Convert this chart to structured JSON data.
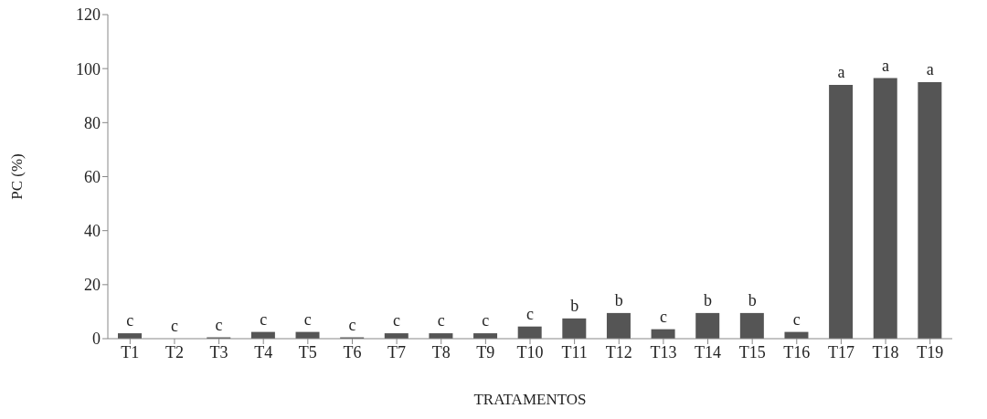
{
  "chart_data": {
    "type": "bar",
    "xlabel": "TRATAMENTOS",
    "ylabel": "PC (%)",
    "categories": [
      "T1",
      "T2",
      "T3",
      "T4",
      "T5",
      "T6",
      "T7",
      "T8",
      "T9",
      "T10",
      "T11",
      "T12",
      "T13",
      "T14",
      "T15",
      "T16",
      "T17",
      "T18",
      "T19"
    ],
    "values": [
      2,
      0,
      0.5,
      2.5,
      2.5,
      0.5,
      2,
      2,
      2,
      4.5,
      7.5,
      9.5,
      3.5,
      9.5,
      9.5,
      2.5,
      94,
      96.5,
      95
    ],
    "value_labels": [
      "c",
      "c",
      "c",
      "c",
      "c",
      "c",
      "c",
      "c",
      "c",
      "c",
      "b",
      "b",
      "c",
      "b",
      "b",
      "c",
      "a",
      "a",
      "a"
    ],
    "color": "#555555",
    "ylim": [
      0,
      120
    ],
    "yticks": [
      0,
      20,
      40,
      60,
      80,
      100,
      120
    ],
    "grid": false
  }
}
